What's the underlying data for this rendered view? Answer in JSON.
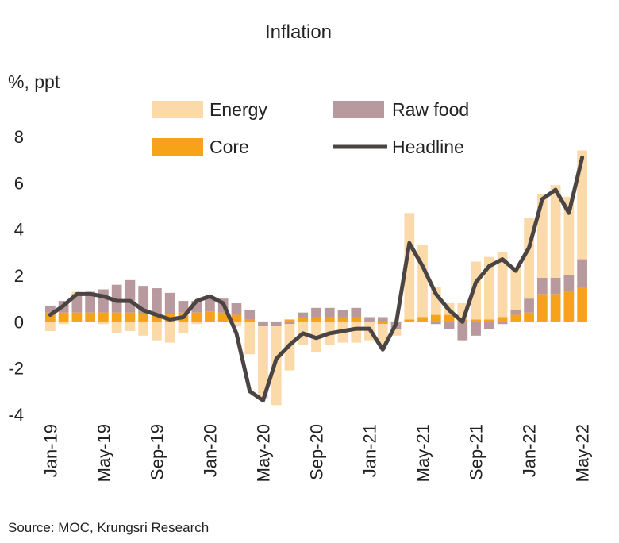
{
  "chart_data": {
    "type": "bar",
    "title": "Inflation",
    "ylabel": "%, ppt",
    "ylim": [
      -4,
      8
    ],
    "yticks": [
      -4,
      -2,
      0,
      2,
      4,
      6,
      8
    ],
    "stacked": true,
    "categories": [
      "Jan-19",
      "Feb-19",
      "Mar-19",
      "Apr-19",
      "May-19",
      "Jun-19",
      "Jul-19",
      "Aug-19",
      "Sep-19",
      "Oct-19",
      "Nov-19",
      "Dec-19",
      "Jan-20",
      "Feb-20",
      "Mar-20",
      "Apr-20",
      "May-20",
      "Jun-20",
      "Jul-20",
      "Aug-20",
      "Sep-20",
      "Oct-20",
      "Nov-20",
      "Dec-20",
      "Jan-21",
      "Feb-21",
      "Mar-21",
      "Apr-21",
      "May-21",
      "Jun-21",
      "Jul-21",
      "Aug-21",
      "Sep-21",
      "Oct-21",
      "Nov-21",
      "Dec-21",
      "Jan-22",
      "Feb-22",
      "Mar-22",
      "Apr-22",
      "May-22"
    ],
    "xtick_labels": [
      "Jan-19",
      "May-19",
      "Sep-19",
      "Jan-20",
      "May-20",
      "Sep-20",
      "Jan-21",
      "May-21",
      "Sep-21",
      "Jan-22",
      "May-22"
    ],
    "xtick_indices": [
      0,
      4,
      8,
      12,
      16,
      20,
      24,
      28,
      32,
      36,
      40
    ],
    "series": [
      {
        "name": "Core",
        "kind": "bar",
        "color": "#F7A21B",
        "values": [
          0.4,
          0.4,
          0.4,
          0.4,
          0.4,
          0.4,
          0.4,
          0.35,
          0.35,
          0.35,
          0.4,
          0.4,
          0.45,
          0.4,
          0.3,
          0.1,
          0,
          0,
          0.1,
          0.2,
          0.2,
          0.2,
          0.2,
          0.2,
          0,
          -0.1,
          0,
          0.1,
          0.2,
          0.3,
          0.3,
          0.1,
          0.1,
          0.1,
          0.2,
          0.3,
          0.4,
          1.2,
          1.2,
          1.3,
          1.5
        ]
      },
      {
        "name": "Raw food",
        "kind": "bar",
        "color": "#B89A9E",
        "values": [
          0.3,
          0.5,
          0.8,
          0.9,
          1.0,
          1.2,
          1.4,
          1.2,
          1.1,
          0.9,
          0.5,
          0.5,
          0.6,
          0.6,
          0.5,
          0.4,
          -0.2,
          -0.2,
          -0.1,
          0.2,
          0.4,
          0.4,
          0.3,
          0.4,
          0.2,
          0.2,
          -0.3,
          0,
          0,
          -0.1,
          -0.3,
          -0.8,
          -0.6,
          -0.3,
          -0.1,
          0.2,
          0.6,
          0.7,
          0.7,
          0.7,
          1.2
        ]
      },
      {
        "name": "Energy",
        "kind": "bar",
        "color": "#FCD9A8",
        "values": [
          -0.4,
          -0.1,
          0.1,
          0,
          -0.1,
          -0.5,
          -0.4,
          -0.6,
          -0.8,
          -0.9,
          -0.5,
          -0.1,
          0,
          0,
          -0.2,
          -1.4,
          -3.1,
          -3.4,
          -2,
          -1.0,
          -1.3,
          -1.0,
          -0.9,
          -0.9,
          -0.8,
          -0.9,
          -0.3,
          4.6,
          3.1,
          1.2,
          0.5,
          0.7,
          2.5,
          2.7,
          2.8,
          1.8,
          3.5,
          3.6,
          4.0,
          3.4,
          4.7
        ]
      },
      {
        "name": "Headline",
        "kind": "line",
        "color": "#4A4443",
        "values": [
          0.3,
          0.7,
          1.2,
          1.2,
          1.1,
          0.9,
          0.9,
          0.5,
          0.3,
          0.1,
          0.2,
          0.9,
          1.1,
          0.8,
          -0.5,
          -3.0,
          -3.4,
          -1.6,
          -1.0,
          -0.5,
          -0.7,
          -0.5,
          -0.4,
          -0.3,
          -0.3,
          -1.2,
          -0.1,
          3.4,
          2.4,
          1.2,
          0.5,
          0,
          1.7,
          2.4,
          2.7,
          2.2,
          3.2,
          5.3,
          5.7,
          4.7,
          7.1
        ]
      }
    ],
    "legend": {
      "placement": "top",
      "entries": [
        {
          "name": "Energy",
          "swatch": "bar",
          "color": "#FCD9A8"
        },
        {
          "name": "Raw food",
          "swatch": "bar",
          "color": "#B89A9E"
        },
        {
          "name": "Core",
          "swatch": "bar",
          "color": "#F7A21B"
        },
        {
          "name": "Headline",
          "swatch": "line",
          "color": "#4A4443"
        }
      ]
    }
  },
  "source": "Source:  MOC, Krungsri Research"
}
